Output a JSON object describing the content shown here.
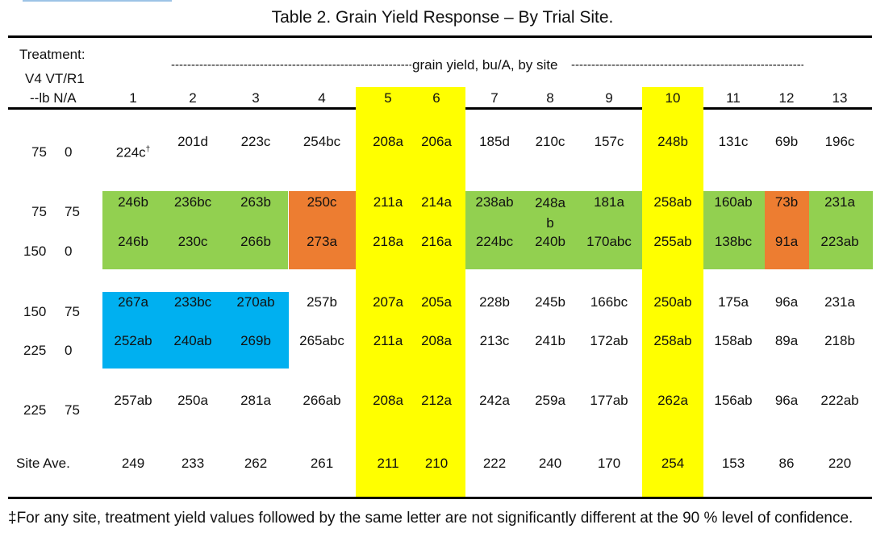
{
  "title": "Table 2. Grain Yield Response – By Trial Site.",
  "header": {
    "treatment_line1": "Treatment:",
    "treatment_line2": "V4 VT/R1",
    "treatment_line3": "--lb N/A",
    "span_label": "grain yield, bu/A, by site",
    "sites": [
      "1",
      "2",
      "3",
      "4",
      "5",
      "6",
      "7",
      "8",
      "9",
      "10",
      "11",
      "12",
      "13"
    ]
  },
  "rows": [
    {
      "v4": "75",
      "vt": "0",
      "values": [
        "224c",
        "201d",
        "223c",
        "254bc",
        "208a",
        "206a",
        "185d",
        "210c",
        "157c",
        "248b",
        "131c",
        "69b",
        "196c"
      ]
    },
    {
      "v4": "75",
      "vt": "75",
      "values": [
        "246b",
        "236bc",
        "263b",
        "250c",
        "211a",
        "214a",
        "238ab",
        "248a\nb",
        "181a",
        "258ab",
        "160ab",
        "73b",
        "231a"
      ]
    },
    {
      "v4": "150",
      "vt": "0",
      "values": [
        "246b",
        "230c",
        "266b",
        "273a",
        "218a",
        "216a",
        "224bc",
        "240b",
        "170abc",
        "255ab",
        "138bc",
        "91a",
        "223ab"
      ]
    },
    {
      "v4": "150",
      "vt": "75",
      "values": [
        "267a",
        "233bc",
        "270ab",
        "257b",
        "207a",
        "205a",
        "228b",
        "245b",
        "166bc",
        "250ab",
        "175a",
        "96a",
        "231a"
      ]
    },
    {
      "v4": "225",
      "vt": "0",
      "values": [
        "252ab",
        "240ab",
        "269b",
        "265abc",
        "211a",
        "208a",
        "213c",
        "241b",
        "172ab",
        "258ab",
        "158ab",
        "89a",
        "218b"
      ]
    },
    {
      "v4": "225",
      "vt": "75",
      "values": [
        "257ab",
        "250a",
        "281a",
        "266ab",
        "208a",
        "212a",
        "242a",
        "259a",
        "177ab",
        "262a",
        "156ab",
        "96a",
        "222ab"
      ]
    }
  ],
  "site_average": {
    "label": "Site Ave.",
    "values": [
      "249",
      "233",
      "262",
      "261",
      "211",
      "210",
      "222",
      "240",
      "170",
      "254",
      "153",
      "86",
      "220"
    ]
  },
  "footnote": {
    "marker": "‡",
    "text": "For any site, treatment yield values followed by the same letter are not significantly different at the 90 % level of confidence."
  },
  "dagger": "†",
  "colors": {
    "yellow": "#ffff00",
    "green": "#92d050",
    "orange": "#ed7d31",
    "blue": "#00b0f0"
  }
}
